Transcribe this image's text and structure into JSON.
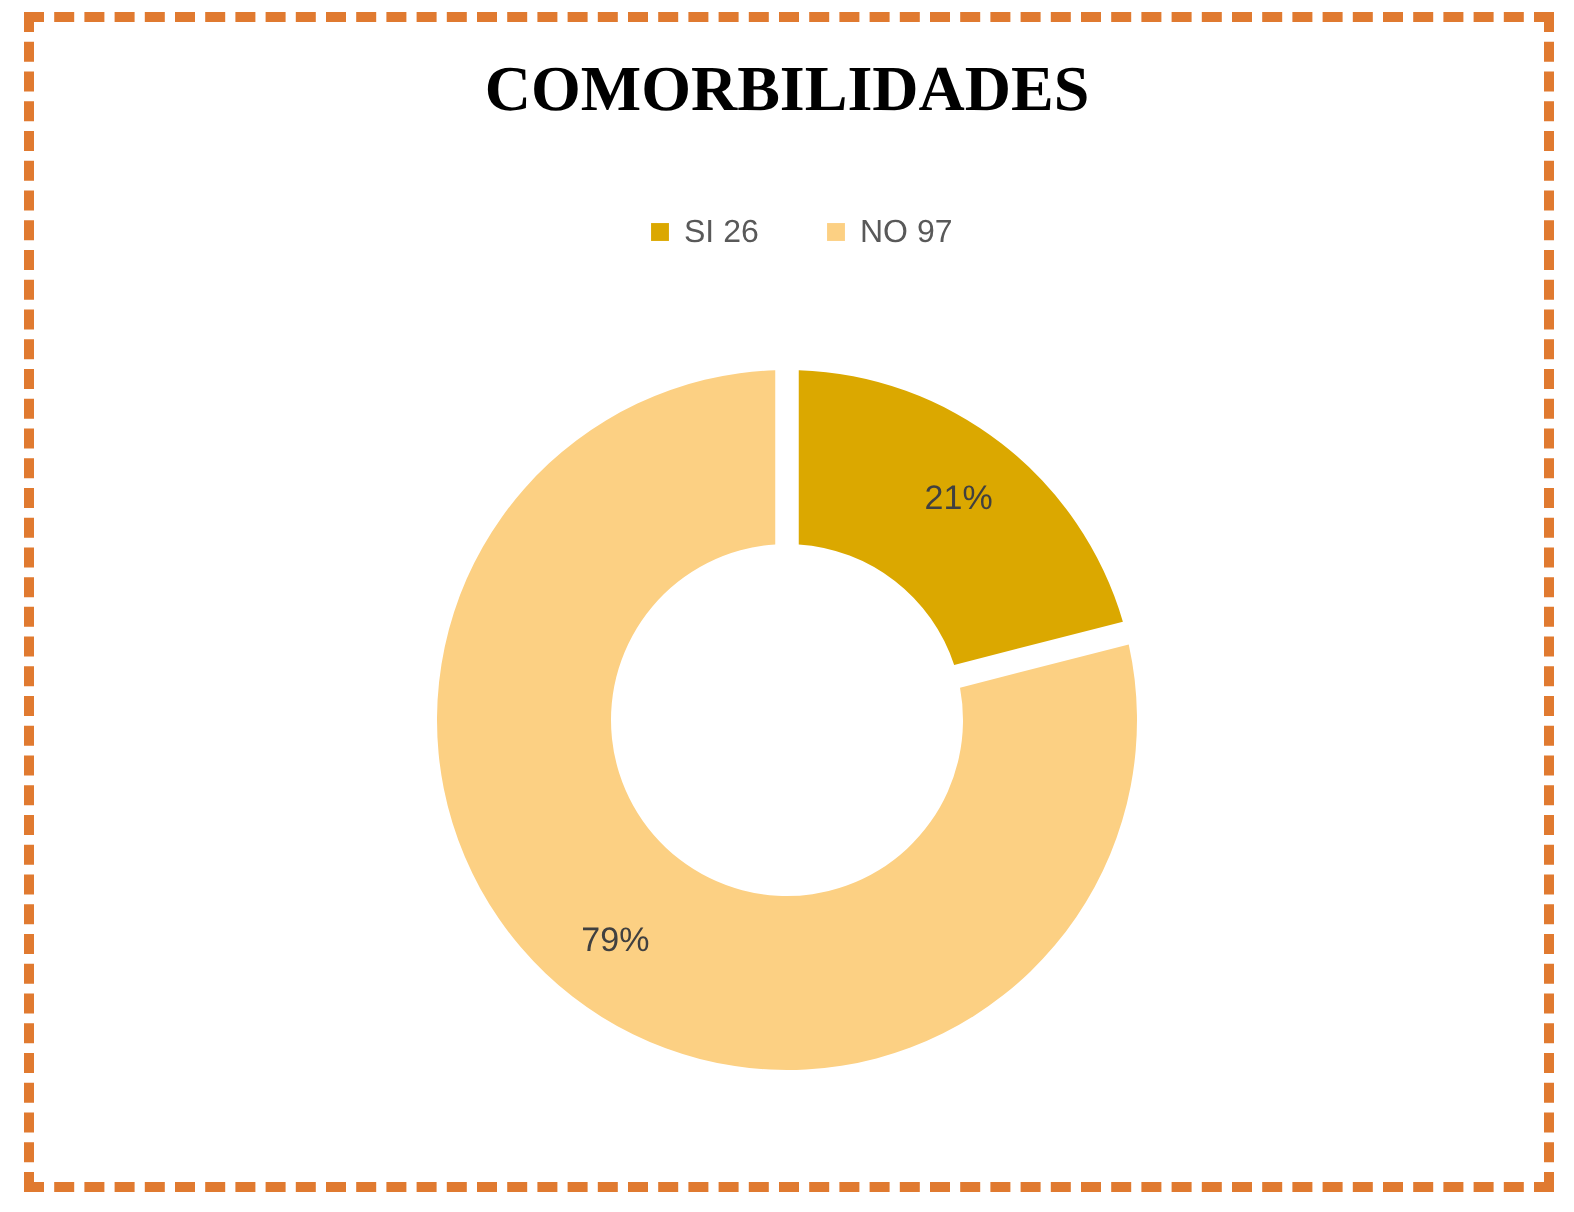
{
  "chart_data": {
    "type": "donut",
    "title": "COMORBILIDADES",
    "categories": [
      "SI 26",
      "NO 97"
    ],
    "values": [
      21,
      79
    ],
    "value_labels": [
      "21%",
      "79%"
    ],
    "colors": [
      "#dba800",
      "#fcd083"
    ],
    "legend": "top"
  }
}
